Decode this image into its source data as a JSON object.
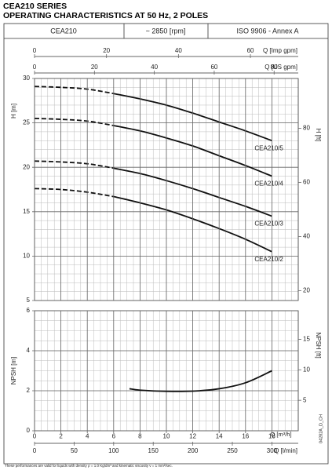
{
  "header": {
    "title": "CEA210 SERIES",
    "subtitle": "OPERATING CHARACTERISTICS AT 50 Hz, 2 POLES",
    "cells": [
      "CEA210",
      "~ 2850 [rpm]",
      "ISO 9906 - Annex A"
    ]
  },
  "footnote": "These performances are valid for liquids with density ρ = 1.0 Kg/dm³ and kinematic viscosity ν = 1 mm²/sec.",
  "code": "04282A_D_CH",
  "chart_data": [
    {
      "type": "line",
      "ylabel": "H [m]",
      "y2label": "H [ft]",
      "xlim": [
        0,
        20
      ],
      "ylim": [
        5,
        30
      ],
      "yticks": [
        5,
        10,
        15,
        20,
        25,
        30
      ],
      "y2lim": [
        16.4,
        98.4
      ],
      "y2ticks": [
        20,
        40,
        60,
        80
      ],
      "top_axes": [
        {
          "label": "Q [Imp gpm]",
          "lim": [
            0,
            73.3
          ],
          "ticks": [
            0,
            20,
            40,
            60
          ]
        },
        {
          "label": "Q [US gpm]",
          "lim": [
            0,
            88.06
          ],
          "ticks": [
            0,
            20,
            40,
            60,
            80
          ]
        }
      ],
      "dashed_until_x": 6,
      "color": "#111111",
      "grid": true,
      "x": [
        0,
        2,
        4,
        6,
        8,
        10,
        12,
        14,
        16,
        18
      ],
      "series": [
        {
          "name": "CEA210/5",
          "values": [
            29.1,
            29.0,
            28.8,
            28.3,
            27.7,
            27.0,
            26.1,
            25.1,
            24.1,
            23.0
          ]
        },
        {
          "name": "CEA210/4",
          "values": [
            25.5,
            25.4,
            25.2,
            24.7,
            24.1,
            23.3,
            22.4,
            21.3,
            20.2,
            19.0
          ]
        },
        {
          "name": "CEA210/3",
          "values": [
            20.7,
            20.6,
            20.4,
            19.9,
            19.3,
            18.5,
            17.6,
            16.6,
            15.6,
            14.5
          ]
        },
        {
          "name": "CEA210/2",
          "values": [
            17.6,
            17.5,
            17.2,
            16.7,
            16.0,
            15.2,
            14.2,
            13.1,
            11.9,
            10.5
          ]
        }
      ]
    },
    {
      "type": "line",
      "ylabel": "NPSH [m]",
      "y2label": "NPSH [ft]",
      "xlabel": "Q [m³/h]",
      "xlim": [
        0,
        20
      ],
      "xticks": [
        0,
        2,
        4,
        6,
        8,
        10,
        12,
        14,
        16,
        18
      ],
      "ylim": [
        0,
        6
      ],
      "yticks": [
        0,
        2,
        4,
        6
      ],
      "y2lim": [
        0,
        19.7
      ],
      "y2ticks": [
        5,
        10,
        15
      ],
      "bottom_axes": [
        {
          "label": "Q [l/min]",
          "lim": [
            0,
            333.3
          ],
          "ticks": [
            0,
            50,
            100,
            150,
            200,
            250,
            300
          ]
        }
      ],
      "color": "#111111",
      "grid": true,
      "x": [
        7.2,
        8,
        10,
        12,
        14,
        16,
        18
      ],
      "series": [
        {
          "values": [
            2.1,
            2.03,
            1.97,
            1.98,
            2.1,
            2.4,
            3.0
          ]
        }
      ]
    }
  ]
}
